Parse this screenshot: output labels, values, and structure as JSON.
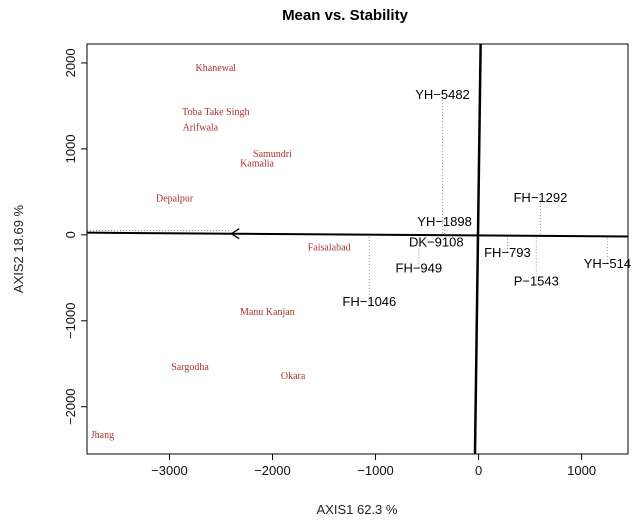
{
  "chart_data": {
    "type": "scatter",
    "title": "Mean vs. Stability",
    "xlabel": "AXIS1 62.3 %",
    "ylabel": "AXIS2 18.69 %",
    "xlim": [
      -3800,
      1450
    ],
    "ylim": [
      -2550,
      2220
    ],
    "xticks": [
      -3000,
      -2000,
      -1000,
      0,
      1000
    ],
    "yticks": [
      -2000,
      -1000,
      0,
      1000,
      2000
    ],
    "xtick_labels": [
      "−3000",
      "−2000",
      "−1000",
      "0",
      "1000"
    ],
    "ytick_labels": [
      "−2000",
      "−1000",
      "0",
      "1000",
      "2000"
    ],
    "environments": [
      {
        "label": "Khanewal",
        "x": -2550,
        "y": 1940
      },
      {
        "label": "Toba Take Singh",
        "x": -2550,
        "y": 1430
      },
      {
        "label": "Arifwala",
        "x": -2700,
        "y": 1250
      },
      {
        "label": "Samundri",
        "x": -2000,
        "y": 940
      },
      {
        "label": "Kamalia",
        "x": -2150,
        "y": 830
      },
      {
        "label": "Depalpur",
        "x": -2950,
        "y": 420
      },
      {
        "label": "Faisalabad",
        "x": -1450,
        "y": -150
      },
      {
        "label": "Manu Kanjan",
        "x": -2050,
        "y": -900
      },
      {
        "label": "Sargodha",
        "x": -2800,
        "y": -1540
      },
      {
        "label": "Okara",
        "x": -1800,
        "y": -1640
      },
      {
        "label": "Jhang",
        "x": -3650,
        "y": -2330
      }
    ],
    "genotypes": [
      {
        "label": "YH−5482",
        "x": -350,
        "y": 1640,
        "proj_y": 0
      },
      {
        "label": "FH−1292",
        "x": 600,
        "y": 440,
        "proj_y": -20
      },
      {
        "label": "YH−1898",
        "x": -330,
        "y": 160,
        "proj_y": 0
      },
      {
        "label": "DK−9108",
        "x": -410,
        "y": -80,
        "proj_y": 0
      },
      {
        "label": "FH−793",
        "x": 280,
        "y": -200,
        "proj_y": -20
      },
      {
        "label": "FH−949",
        "x": -580,
        "y": -380,
        "proj_y": 0
      },
      {
        "label": "P−1543",
        "x": 560,
        "y": -530,
        "proj_y": -20
      },
      {
        "label": "YH−514",
        "x": 1250,
        "y": -330,
        "proj_y": -20
      },
      {
        "label": "FH−1046",
        "x": -1060,
        "y": -770,
        "proj_y": 0
      }
    ],
    "aec_abscissa": {
      "x1": -3800,
      "y1": 25,
      "x2": 1450,
      "y2": -20,
      "arrow_at_x": -2400
    },
    "aec_ordinate": {
      "x1": 20,
      "y1": 2220,
      "x2": -35,
      "y2": -2550
    },
    "grid": false,
    "legend": "none"
  }
}
